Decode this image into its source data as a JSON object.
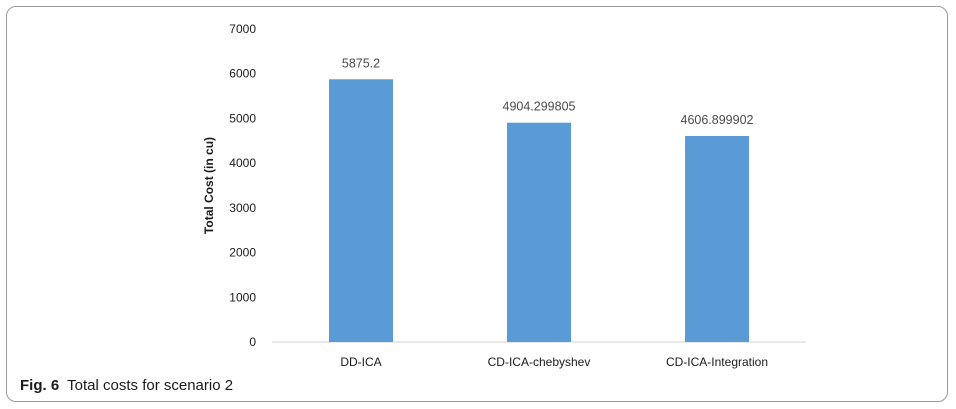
{
  "chart_data": {
    "type": "bar",
    "categories": [
      "DD-ICA",
      "CD-ICA-chebyshev",
      "CD-ICA-Integration"
    ],
    "values": [
      5875.2,
      4904.299805,
      4606.899902
    ],
    "value_labels": [
      "5875.2",
      "4904.299805",
      "4606.899902"
    ],
    "ylabel": "Total Cost (in cu)",
    "ylim": [
      0,
      7000
    ],
    "yticks": [
      0,
      1000,
      2000,
      3000,
      4000,
      5000,
      6000,
      7000
    ],
    "grid": false,
    "bar_color": "#5b9bd5"
  },
  "caption": {
    "label": "Fig. 6",
    "text": "Total costs for scenario 2"
  }
}
